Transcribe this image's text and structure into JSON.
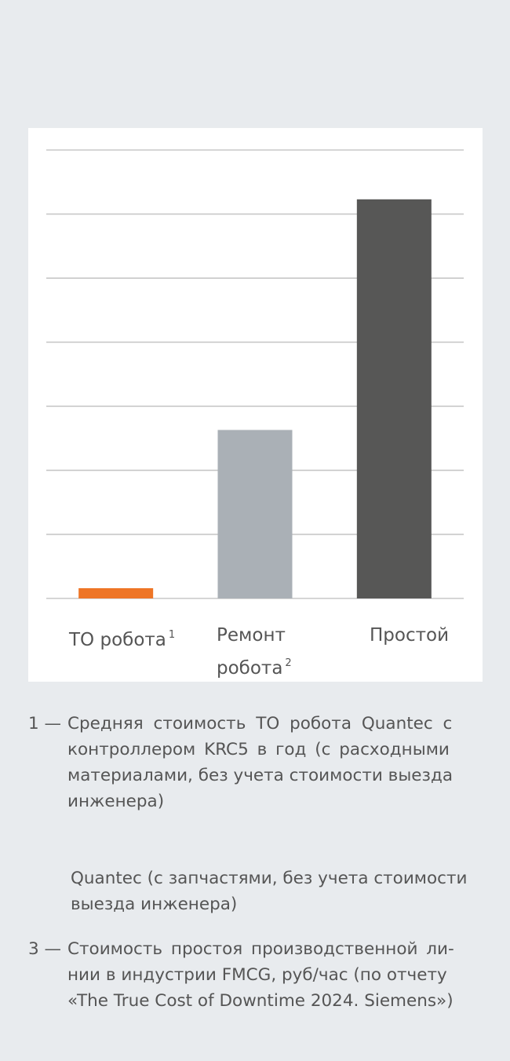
{
  "chart_data": {
    "type": "bar",
    "categories": [
      "ТО робота",
      "Ремонт робота",
      "Простой"
    ],
    "category_notes": [
      "1",
      "2",
      ""
    ],
    "values": [
      0.16,
      2.63,
      6.23
    ],
    "colors": [
      "#ee7526",
      "#aab0b6",
      "#575756"
    ],
    "ylim": [
      0,
      7
    ],
    "grid": true,
    "title": "",
    "xlabel": "",
    "ylabel": ""
  },
  "labels": {
    "cat1": "ТО робота",
    "cat1_note": "1",
    "cat2_line1": "Ремонт",
    "cat2_line2": "робота",
    "cat2_note": "2",
    "cat3": "Простой"
  },
  "footnotes": {
    "f1_number": "1 —",
    "f1_lines": [
      "Средняя стоимость ТО робота Quantec с",
      "контроллером KRC5 в год (с расходными",
      "материалами, без учета стоимости выезда",
      "инженера)"
    ],
    "f2_lines": [
      "Quantec (с запчастями, без учета стоимости",
      "выезда инженера)"
    ],
    "f3_number": "3 —",
    "f3_lines": [
      "Стоимость простоя производственной ли-",
      "нии в индустрии FMCG, руб/час (по отчету",
      "«The True Cost of Downtime 2024. Siemens»)"
    ]
  }
}
